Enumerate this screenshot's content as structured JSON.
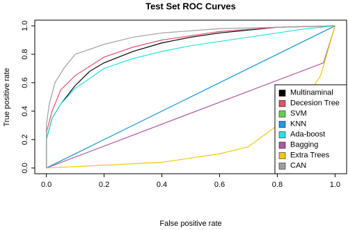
{
  "chart_data": {
    "type": "line",
    "title": "Test Set ROC Curves",
    "xlabel": "False positive rate",
    "ylabel": "True positive rate",
    "xlim": [
      -0.04,
      1.04
    ],
    "ylim": [
      -0.04,
      1.04
    ],
    "xticks": [
      {
        "value": 0,
        "label": "0.0"
      },
      0.2,
      0.4,
      0.6,
      0.8,
      {
        "value": 1,
        "label": "1.0"
      }
    ],
    "yticks": [
      {
        "value": 0,
        "label": "0.0"
      },
      0.2,
      0.4,
      0.6,
      0.8,
      {
        "value": 1,
        "label": "1.0"
      }
    ],
    "legend": "bottom-right",
    "series": [
      {
        "name": "Multinaminal",
        "color": "#000000",
        "x": [
          0,
          0,
          0.02,
          0.05,
          0.1,
          0.15,
          0.2,
          0.3,
          0.4,
          0.5,
          0.6,
          0.7,
          0.8,
          1
        ],
        "values": [
          0,
          0.2,
          0.35,
          0.45,
          0.58,
          0.68,
          0.74,
          0.82,
          0.88,
          0.92,
          0.95,
          0.97,
          0.99,
          1
        ]
      },
      {
        "name": "Decesion Tree",
        "color": "#DF536B",
        "x": [
          0,
          0,
          0.02,
          0.05,
          0.1,
          0.2,
          0.3,
          0.4,
          0.6,
          0.8,
          1
        ],
        "values": [
          0,
          0.25,
          0.4,
          0.55,
          0.65,
          0.78,
          0.85,
          0.9,
          0.96,
          0.99,
          1
        ]
      },
      {
        "name": "SVM",
        "color": "#61D04F",
        "x": [
          0,
          1
        ],
        "values": [
          0,
          1
        ]
      },
      {
        "name": "KNN",
        "color": "#2297E6",
        "x": [
          0,
          1
        ],
        "values": [
          0,
          1
        ]
      },
      {
        "name": "Ada-boost",
        "color": "#28E2E5",
        "x": [
          0,
          0,
          0.02,
          0.05,
          0.1,
          0.2,
          0.3,
          0.4,
          0.5,
          0.6,
          0.7,
          0.8,
          0.9,
          1
        ],
        "values": [
          0,
          0.2,
          0.35,
          0.45,
          0.56,
          0.7,
          0.77,
          0.82,
          0.86,
          0.89,
          0.92,
          0.95,
          0.98,
          1
        ]
      },
      {
        "name": "Bagging",
        "color": "#B0589B",
        "x": [
          0,
          0.96,
          1
        ],
        "values": [
          0,
          0.74,
          1
        ]
      },
      {
        "name": "Extra Trees",
        "color": "#F5C710",
        "x": [
          0,
          0.2,
          0.4,
          0.6,
          0.7,
          0.8,
          0.9,
          0.95,
          1
        ],
        "values": [
          0,
          0.02,
          0.04,
          0.1,
          0.15,
          0.3,
          0.5,
          0.65,
          1
        ]
      },
      {
        "name": "CAN",
        "color": "#9E9E9E",
        "x": [
          0,
          0,
          0.01,
          0.03,
          0.06,
          0.1,
          0.2,
          0.3,
          0.4,
          0.6,
          0.8,
          1
        ],
        "values": [
          0,
          0.3,
          0.45,
          0.6,
          0.7,
          0.8,
          0.87,
          0.92,
          0.95,
          0.98,
          0.99,
          1
        ]
      }
    ]
  }
}
